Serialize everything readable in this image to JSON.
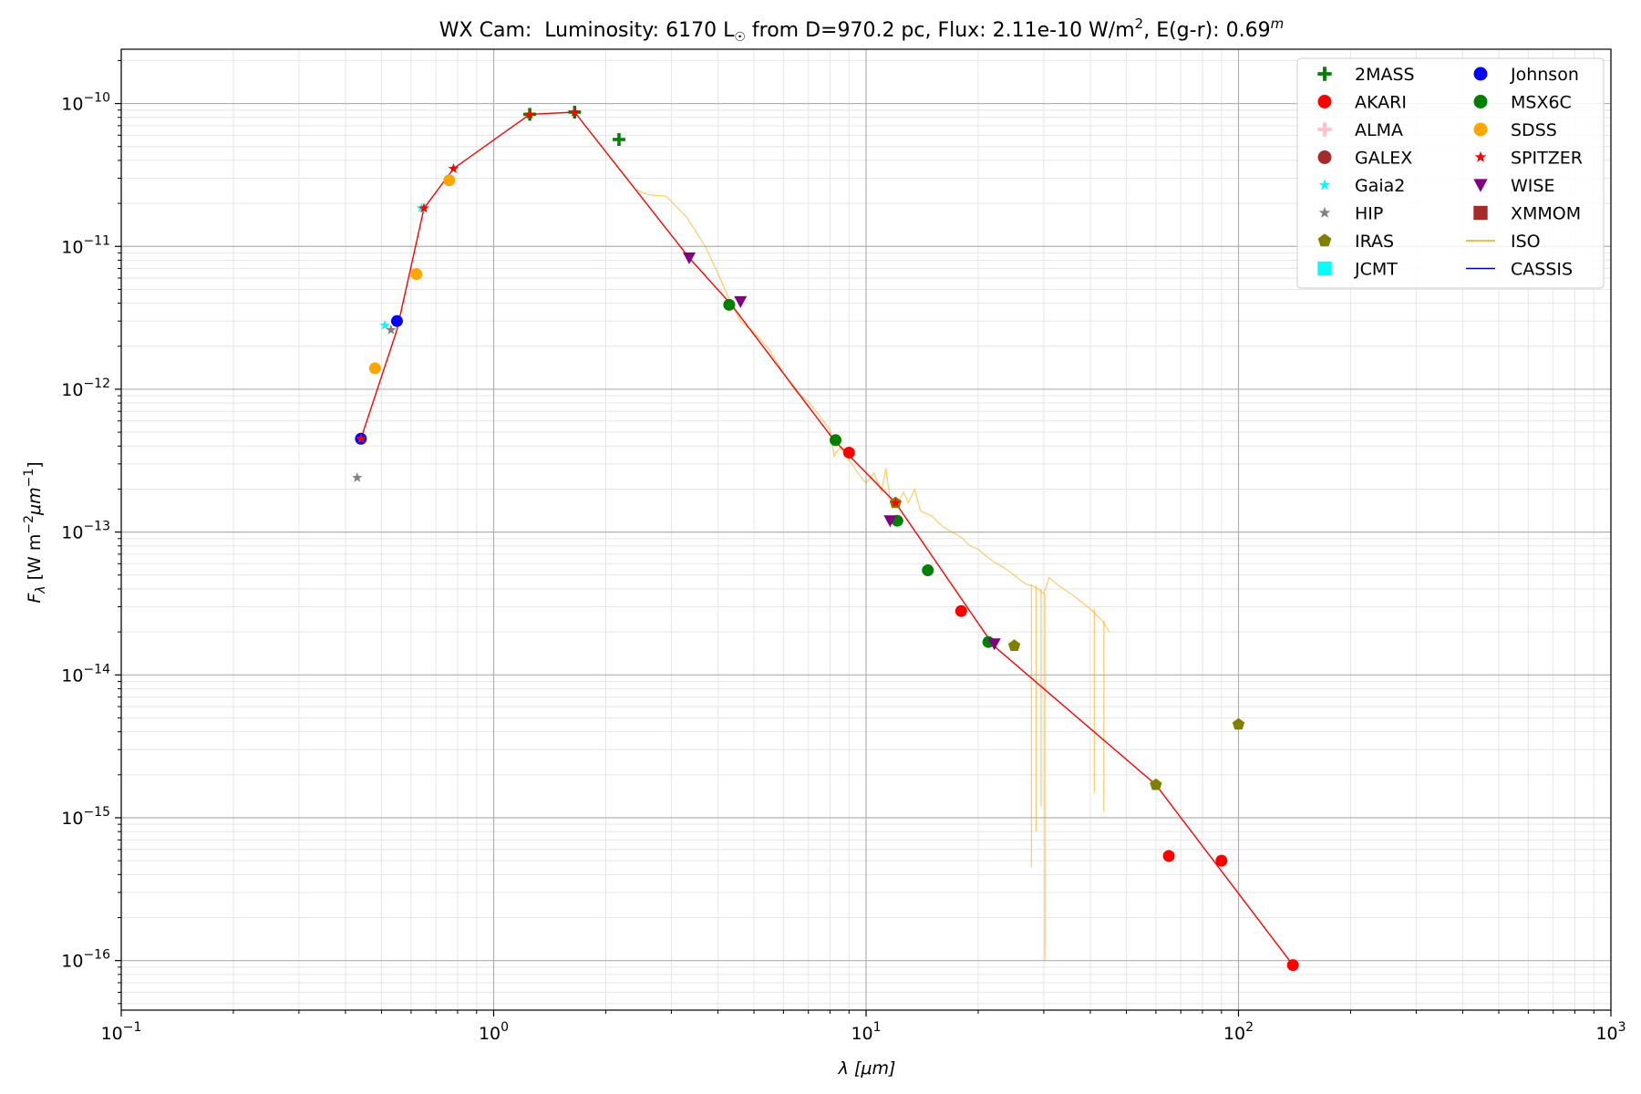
{
  "chart_data": {
    "type": "scatter",
    "title": {
      "star": "WX Cam:",
      "luminosity_label": "Luminosity: 6170 L",
      "sun_symbol": "☉",
      "distance_label": "from D=970.2 pc, Flux: 2.11e-10 W/m",
      "flux_power": "2",
      "extinction_label": ", E(g-r): 0.69",
      "extinction_power": "m"
    },
    "xlabel": {
      "symbol": "λ",
      "unit": "[μm]"
    },
    "ylabel": {
      "symbol": "F",
      "subscript": "λ",
      "unit_a": "[W m",
      "pow_a": "−2",
      "unit_b": "μm",
      "pow_b": "−1",
      "unit_c": "]"
    },
    "x_scale": "log",
    "y_scale": "log",
    "xlim": [
      0.1,
      1000
    ],
    "ylim": [
      4.5e-17,
      2.4e-10
    ],
    "grid": true,
    "legend_position": "top-right",
    "x_ticks": [
      {
        "value": 0.1,
        "base": "10",
        "exp": "−1"
      },
      {
        "value": 1,
        "base": "10",
        "exp": "0"
      },
      {
        "value": 10,
        "base": "10",
        "exp": "1"
      },
      {
        "value": 100,
        "base": "10",
        "exp": "2"
      },
      {
        "value": 1000,
        "base": "10",
        "exp": "3"
      }
    ],
    "y_ticks": [
      {
        "value": 1e-16,
        "base": "10",
        "exp": "−16"
      },
      {
        "value": 1e-15,
        "base": "10",
        "exp": "−15"
      },
      {
        "value": 1e-14,
        "base": "10",
        "exp": "−14"
      },
      {
        "value": 1e-13,
        "base": "10",
        "exp": "−13"
      },
      {
        "value": 1e-12,
        "base": "10",
        "exp": "−12"
      },
      {
        "value": 1e-11,
        "base": "10",
        "exp": "−11"
      },
      {
        "value": 1e-10,
        "base": "10",
        "exp": "−10"
      }
    ],
    "model_line": {
      "color": "#ff0000",
      "points": [
        [
          0.44,
          4.5e-13
        ],
        [
          0.55,
          2.6e-12
        ],
        [
          0.65,
          1.85e-11
        ],
        [
          0.78,
          3.5e-11
        ],
        [
          1.25,
          8.4e-11
        ],
        [
          1.65,
          8.7e-11
        ],
        [
          3.35,
          8.3e-12
        ],
        [
          4.35,
          3.9e-12
        ],
        [
          8.2,
          4.4e-13
        ],
        [
          12.0,
          1.6e-13
        ],
        [
          22.0,
          1.6e-14
        ],
        [
          60.0,
          1.7e-15
        ],
        [
          140.0,
          9.3e-17
        ]
      ]
    },
    "iso_spectrum": {
      "color": "#ffa500",
      "opacity": 0.55,
      "points": [
        [
          2.4,
          2.5e-11
        ],
        [
          2.6,
          2.3e-11
        ],
        [
          2.9,
          2.25e-11
        ],
        [
          3.3,
          1.6e-11
        ],
        [
          3.7,
          1e-11
        ],
        [
          4.0,
          6.5e-12
        ],
        [
          4.3,
          4.2e-12
        ],
        [
          4.6,
          3e-12
        ],
        [
          5.0,
          2.5e-12
        ],
        [
          5.5,
          1.9e-12
        ],
        [
          6.0,
          1.3e-12
        ],
        [
          6.5,
          9.5e-13
        ],
        [
          7.0,
          8.2e-13
        ],
        [
          7.5,
          6.5e-13
        ],
        [
          8.0,
          5.2e-13
        ],
        [
          8.2,
          3.4e-13
        ],
        [
          8.5,
          3.9e-13
        ],
        [
          9.0,
          3.2e-13
        ],
        [
          9.5,
          2.6e-13
        ],
        [
          10.0,
          2.2e-13
        ],
        [
          10.5,
          2.6e-13
        ],
        [
          11.0,
          1.9e-13
        ],
        [
          11.3,
          2.8e-13
        ],
        [
          11.6,
          1.7e-13
        ],
        [
          12.0,
          1.5e-13
        ],
        [
          12.6,
          1.9e-13
        ],
        [
          13.0,
          1.6e-13
        ],
        [
          13.5,
          2e-13
        ],
        [
          14.0,
          1.4e-13
        ],
        [
          15.0,
          1.3e-13
        ],
        [
          16.0,
          1.1e-13
        ],
        [
          17.0,
          1e-13
        ],
        [
          18.0,
          9.2e-14
        ],
        [
          19.0,
          8e-14
        ],
        [
          20.0,
          7.6e-14
        ],
        [
          21.0,
          6.8e-14
        ],
        [
          22.0,
          6.2e-14
        ],
        [
          23.0,
          5.8e-14
        ],
        [
          24.0,
          5.4e-14
        ],
        [
          25.0,
          5e-14
        ],
        [
          26.0,
          4.6e-14
        ],
        [
          27.0,
          4.3e-14
        ],
        [
          28.0,
          4.2e-14
        ],
        [
          29.0,
          4e-14
        ],
        [
          30.0,
          3.7e-14
        ],
        [
          31.0,
          4.8e-14
        ],
        [
          33.0,
          4.2e-14
        ],
        [
          36.0,
          3.6e-14
        ],
        [
          40.0,
          2.9e-14
        ],
        [
          43.0,
          2.4e-14
        ],
        [
          45.0,
          2e-14
        ]
      ],
      "dips": [
        [
          27.8,
          4.5e-16
        ],
        [
          28.6,
          8e-16
        ],
        [
          29.5,
          1.2e-15
        ],
        [
          30.2,
          1e-16
        ],
        [
          41.0,
          1.5e-15
        ],
        [
          43.5,
          1.1e-15
        ]
      ]
    },
    "series": [
      {
        "name": "2MASS",
        "marker": "plus",
        "color": "#008000",
        "points": [
          [
            1.25,
            8.4e-11
          ],
          [
            1.65,
            8.7e-11
          ],
          [
            2.17,
            5.6e-11
          ]
        ]
      },
      {
        "name": "AKARI",
        "marker": "circle",
        "color": "#ff0000",
        "points": [
          [
            9.0,
            3.6e-13
          ],
          [
            18.0,
            2.8e-14
          ],
          [
            65.0,
            5.4e-16
          ],
          [
            90.0,
            5e-16
          ],
          [
            140.0,
            9.3e-17
          ]
        ]
      },
      {
        "name": "ALMA",
        "marker": "plus",
        "color": "#ffc0cb",
        "points": []
      },
      {
        "name": "GALEX",
        "marker": "circle",
        "color": "#a52a2a",
        "points": []
      },
      {
        "name": "Gaia2",
        "marker": "star",
        "color": "#00ffff",
        "points": [
          [
            0.51,
            2.8e-12
          ],
          [
            0.64,
            1.85e-11
          ],
          [
            0.78,
            3.5e-11
          ]
        ]
      },
      {
        "name": "HIP",
        "marker": "star",
        "color": "#808080",
        "points": [
          [
            0.43,
            2.4e-13
          ],
          [
            0.53,
            2.6e-12
          ]
        ]
      },
      {
        "name": "IRAS",
        "marker": "pentagon",
        "color": "#808000",
        "points": [
          [
            12.0,
            1.6e-13
          ],
          [
            25.0,
            1.6e-14
          ],
          [
            60.0,
            1.7e-15
          ],
          [
            100.0,
            4.5e-15
          ]
        ]
      },
      {
        "name": "JCMT",
        "marker": "square",
        "color": "#00ffff",
        "points": []
      },
      {
        "name": "Johnson",
        "marker": "circle",
        "color": "#0000ff",
        "points": [
          [
            0.44,
            4.5e-13
          ],
          [
            0.55,
            3e-12
          ]
        ]
      },
      {
        "name": "MSX6C",
        "marker": "circle",
        "color": "#008000",
        "points": [
          [
            4.29,
            3.9e-12
          ],
          [
            8.28,
            4.4e-13
          ],
          [
            12.13,
            1.2e-13
          ],
          [
            14.65,
            5.4e-14
          ],
          [
            21.3,
            1.7e-14
          ]
        ]
      },
      {
        "name": "SDSS",
        "marker": "circle",
        "color": "#ffa500",
        "points": [
          [
            0.48,
            1.4e-12
          ],
          [
            0.62,
            6.4e-12
          ],
          [
            0.76,
            2.9e-11
          ]
        ]
      },
      {
        "name": "SPITZER",
        "marker": "star",
        "color": "#ff0000",
        "points": [
          [
            0.44,
            4.5e-13
          ],
          [
            0.65,
            1.85e-11
          ],
          [
            0.78,
            3.5e-11
          ],
          [
            1.25,
            8.4e-11
          ],
          [
            1.65,
            8.7e-11
          ],
          [
            12.0,
            1.6e-13
          ]
        ]
      },
      {
        "name": "WISE",
        "marker": "triangle",
        "color": "#800080",
        "points": [
          [
            3.35,
            8.3e-12
          ],
          [
            4.6,
            4.1e-12
          ],
          [
            11.6,
            1.2e-13
          ],
          [
            22.1,
            1.65e-14
          ]
        ]
      },
      {
        "name": "XMMOM",
        "marker": "square",
        "color": "#a52a2a",
        "points": []
      }
    ],
    "legend": [
      {
        "label": "2MASS",
        "marker": "plus",
        "color": "#008000"
      },
      {
        "label": "AKARI",
        "marker": "circle",
        "color": "#ff0000"
      },
      {
        "label": "ALMA",
        "marker": "plus",
        "color": "#ffc0cb"
      },
      {
        "label": "GALEX",
        "marker": "circle",
        "color": "#a52a2a"
      },
      {
        "label": "Gaia2",
        "marker": "star",
        "color": "#00ffff"
      },
      {
        "label": "HIP",
        "marker": "star",
        "color": "#808080"
      },
      {
        "label": "IRAS",
        "marker": "pentagon",
        "color": "#808000"
      },
      {
        "label": "JCMT",
        "marker": "square",
        "color": "#00ffff"
      },
      {
        "label": "Johnson",
        "marker": "circle",
        "color": "#0000ff"
      },
      {
        "label": "MSX6C",
        "marker": "circle",
        "color": "#008000"
      },
      {
        "label": "SDSS",
        "marker": "circle",
        "color": "#ffa500"
      },
      {
        "label": "SPITZER",
        "marker": "star",
        "color": "#ff0000"
      },
      {
        "label": "WISE",
        "marker": "triangle",
        "color": "#800080"
      },
      {
        "label": "XMMOM",
        "marker": "square",
        "color": "#a52a2a"
      },
      {
        "label": "ISO",
        "marker": "line",
        "color": "#ffa500"
      },
      {
        "label": "CASSIS",
        "marker": "line",
        "color": "#0000aa"
      }
    ]
  }
}
